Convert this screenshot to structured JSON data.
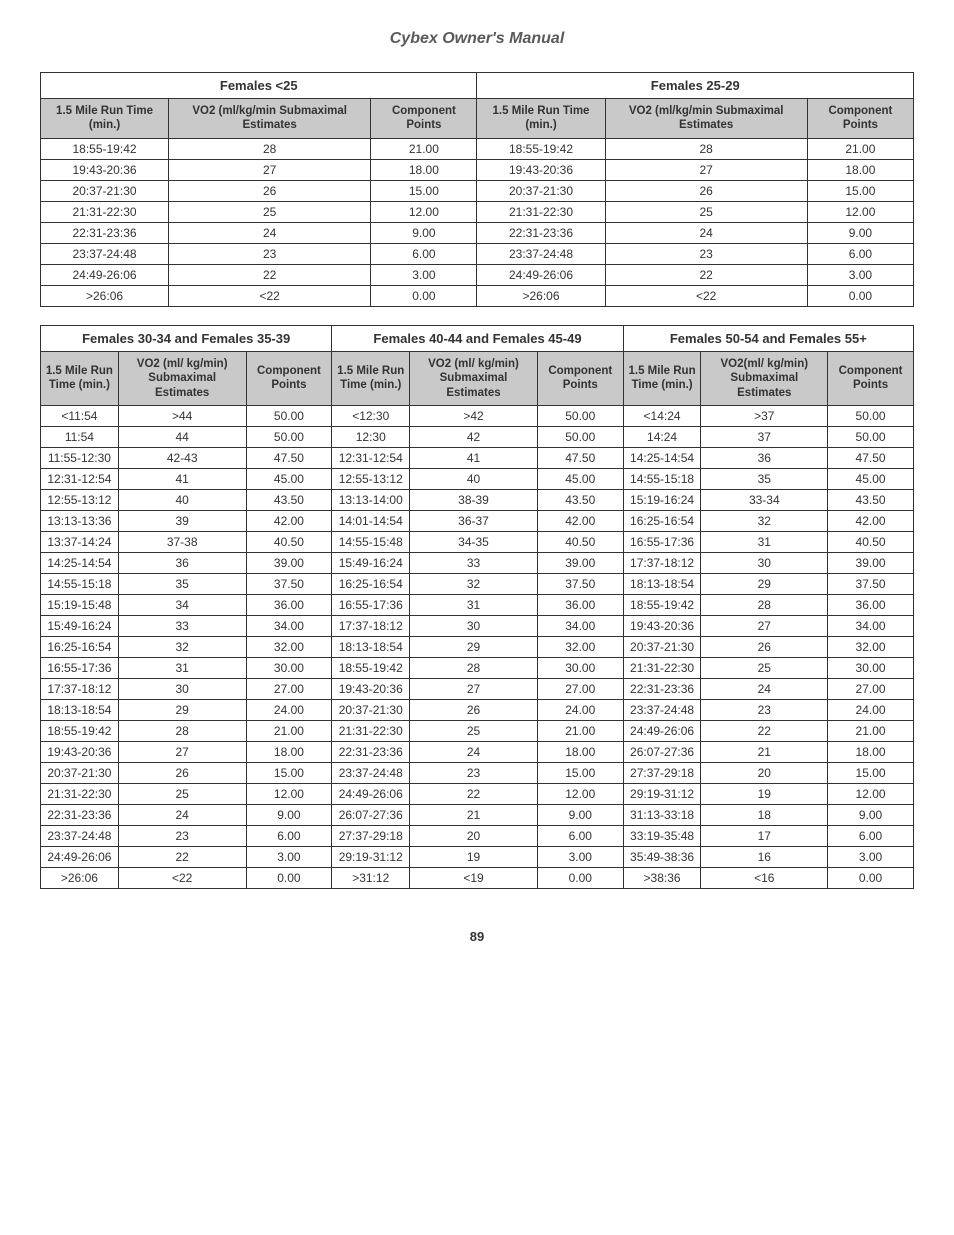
{
  "doc_title": "Cybex Owner's Manual",
  "page_number": "89",
  "column_labels": {
    "time": "1.5 Mile Run Time (min.)",
    "vo2_long": "VO2 (ml/kg/min Submaximal Estimates",
    "vo2_short": "VO2 (ml/ kg/min) Submaximal Estimates",
    "vo2_short2": "VO2(ml/ kg/min) Submaximal Estimates",
    "points": "Component Points"
  },
  "table1": {
    "groups": [
      "Females <25",
      "Females 25-29"
    ],
    "rows": [
      [
        "18:55-19:42",
        "28",
        "21.00",
        "18:55-19:42",
        "28",
        "21.00"
      ],
      [
        "19:43-20:36",
        "27",
        "18.00",
        "19:43-20:36",
        "27",
        "18.00"
      ],
      [
        "20:37-21:30",
        "26",
        "15.00",
        "20:37-21:30",
        "26",
        "15.00"
      ],
      [
        "21:31-22:30",
        "25",
        "12.00",
        "21:31-22:30",
        "25",
        "12.00"
      ],
      [
        "22:31-23:36",
        "24",
        "9.00",
        "22:31-23:36",
        "24",
        "9.00"
      ],
      [
        "23:37-24:48",
        "23",
        "6.00",
        "23:37-24:48",
        "23",
        "6.00"
      ],
      [
        "24:49-26:06",
        "22",
        "3.00",
        "24:49-26:06",
        "22",
        "3.00"
      ],
      [
        ">26:06",
        "<22",
        "0.00",
        ">26:06",
        "<22",
        "0.00"
      ]
    ]
  },
  "table2": {
    "groups": [
      "Females 30-34 and Females 35-39",
      "Females 40-44 and Females 45-49",
      "Females 50-54 and Females 55+"
    ],
    "rows": [
      [
        "<11:54",
        ">44",
        "50.00",
        "<12:30",
        ">42",
        "50.00",
        "<14:24",
        ">37",
        "50.00"
      ],
      [
        "11:54",
        "44",
        "50.00",
        "12:30",
        "42",
        "50.00",
        "14:24",
        "37",
        "50.00"
      ],
      [
        "11:55-12:30",
        "42-43",
        "47.50",
        "12:31-12:54",
        "41",
        "47.50",
        "14:25-14:54",
        "36",
        "47.50"
      ],
      [
        "12:31-12:54",
        "41",
        "45.00",
        "12:55-13:12",
        "40",
        "45.00",
        "14:55-15:18",
        "35",
        "45.00"
      ],
      [
        "12:55-13:12",
        "40",
        "43.50",
        "13:13-14:00",
        "38-39",
        "43.50",
        "15:19-16:24",
        "33-34",
        "43.50"
      ],
      [
        "13:13-13:36",
        "39",
        "42.00",
        "14:01-14:54",
        "36-37",
        "42.00",
        "16:25-16:54",
        "32",
        "42.00"
      ],
      [
        "13:37-14:24",
        "37-38",
        "40.50",
        "14:55-15:48",
        "34-35",
        "40.50",
        "16:55-17:36",
        "31",
        "40.50"
      ],
      [
        "14:25-14:54",
        "36",
        "39.00",
        "15:49-16:24",
        "33",
        "39.00",
        "17:37-18:12",
        "30",
        "39.00"
      ],
      [
        "14:55-15:18",
        "35",
        "37.50",
        "16:25-16:54",
        "32",
        "37.50",
        "18:13-18:54",
        "29",
        "37.50"
      ],
      [
        "15:19-15:48",
        "34",
        "36.00",
        "16:55-17:36",
        "31",
        "36.00",
        "18:55-19:42",
        "28",
        "36.00"
      ],
      [
        "15:49-16:24",
        "33",
        "34.00",
        "17:37-18:12",
        "30",
        "34.00",
        "19:43-20:36",
        "27",
        "34.00"
      ],
      [
        "16:25-16:54",
        "32",
        "32.00",
        "18:13-18:54",
        "29",
        "32.00",
        "20:37-21:30",
        "26",
        "32.00"
      ],
      [
        "16:55-17:36",
        "31",
        "30.00",
        "18:55-19:42",
        "28",
        "30.00",
        "21:31-22:30",
        "25",
        "30.00"
      ],
      [
        "17:37-18:12",
        "30",
        "27.00",
        "19:43-20:36",
        "27",
        "27.00",
        "22:31-23:36",
        "24",
        "27.00"
      ],
      [
        "18:13-18:54",
        "29",
        "24.00",
        "20:37-21:30",
        "26",
        "24.00",
        "23:37-24:48",
        "23",
        "24.00"
      ],
      [
        "18:55-19:42",
        "28",
        "21.00",
        "21:31-22:30",
        "25",
        "21.00",
        "24:49-26:06",
        "22",
        "21.00"
      ],
      [
        "19:43-20:36",
        "27",
        "18.00",
        "22:31-23:36",
        "24",
        "18.00",
        "26:07-27:36",
        "21",
        "18.00"
      ],
      [
        "20:37-21:30",
        "26",
        "15.00",
        "23:37-24:48",
        "23",
        "15.00",
        "27:37-29:18",
        "20",
        "15.00"
      ],
      [
        "21:31-22:30",
        "25",
        "12.00",
        "24:49-26:06",
        "22",
        "12.00",
        "29:19-31:12",
        "19",
        "12.00"
      ],
      [
        "22:31-23:36",
        "24",
        "9.00",
        "26:07-27:36",
        "21",
        "9.00",
        "31:13-33:18",
        "18",
        "9.00"
      ],
      [
        "23:37-24:48",
        "23",
        "6.00",
        "27:37-29:18",
        "20",
        "6.00",
        "33:19-35:48",
        "17",
        "6.00"
      ],
      [
        "24:49-26:06",
        "22",
        "3.00",
        "29:19-31:12",
        "19",
        "3.00",
        "35:49-38:36",
        "16",
        "3.00"
      ],
      [
        ">26:06",
        "<22",
        "0.00",
        ">31:12",
        "<19",
        "0.00",
        ">38:36",
        "<16",
        "0.00"
      ]
    ]
  }
}
